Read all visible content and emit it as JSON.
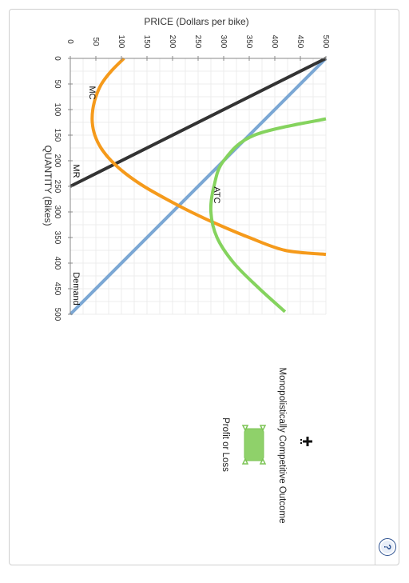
{
  "chart_data": {
    "type": "line",
    "xlabel": "QUANTITY (Bikes)",
    "ylabel": "PRICE (Dollars per bike)",
    "xlim": [
      0,
      500
    ],
    "ylim": [
      0,
      500
    ],
    "xticks": [
      0,
      50,
      100,
      150,
      200,
      250,
      300,
      350,
      400,
      450,
      500
    ],
    "yticks": [
      0,
      50,
      100,
      150,
      200,
      250,
      300,
      350,
      400,
      450,
      500
    ],
    "series": [
      {
        "name": "Demand",
        "color": "#7ba7d4",
        "points": [
          [
            0,
            500
          ],
          [
            500,
            0
          ]
        ]
      },
      {
        "name": "MR",
        "color": "#333333",
        "points": [
          [
            0,
            500
          ],
          [
            250,
            0
          ]
        ]
      },
      {
        "name": "MC",
        "color": "#f59a1b",
        "points": [
          [
            0,
            105
          ],
          [
            25,
            80
          ],
          [
            50,
            61
          ],
          [
            75,
            50
          ],
          [
            100,
            44
          ],
          [
            125,
            43
          ],
          [
            150,
            48
          ],
          [
            175,
            60
          ],
          [
            200,
            80
          ],
          [
            225,
            108
          ],
          [
            250,
            144
          ],
          [
            275,
            188
          ],
          [
            300,
            236
          ],
          [
            325,
            290
          ],
          [
            350,
            350
          ],
          [
            375,
            420
          ],
          [
            383,
            500
          ]
        ]
      },
      {
        "name": "ATC",
        "color": "#85d35e",
        "points": [
          [
            118,
            500
          ],
          [
            150,
            360
          ],
          [
            200,
            300
          ],
          [
            250,
            281
          ],
          [
            300,
            275
          ],
          [
            350,
            287
          ],
          [
            400,
            320
          ],
          [
            450,
            370
          ],
          [
            495,
            420
          ]
        ]
      }
    ]
  },
  "tools": {
    "title": "Monopolistically Competitive Outcome",
    "profit_label": "Profit or Loss",
    "fill_color": "#8fd16a"
  },
  "help": {
    "label": "?"
  }
}
